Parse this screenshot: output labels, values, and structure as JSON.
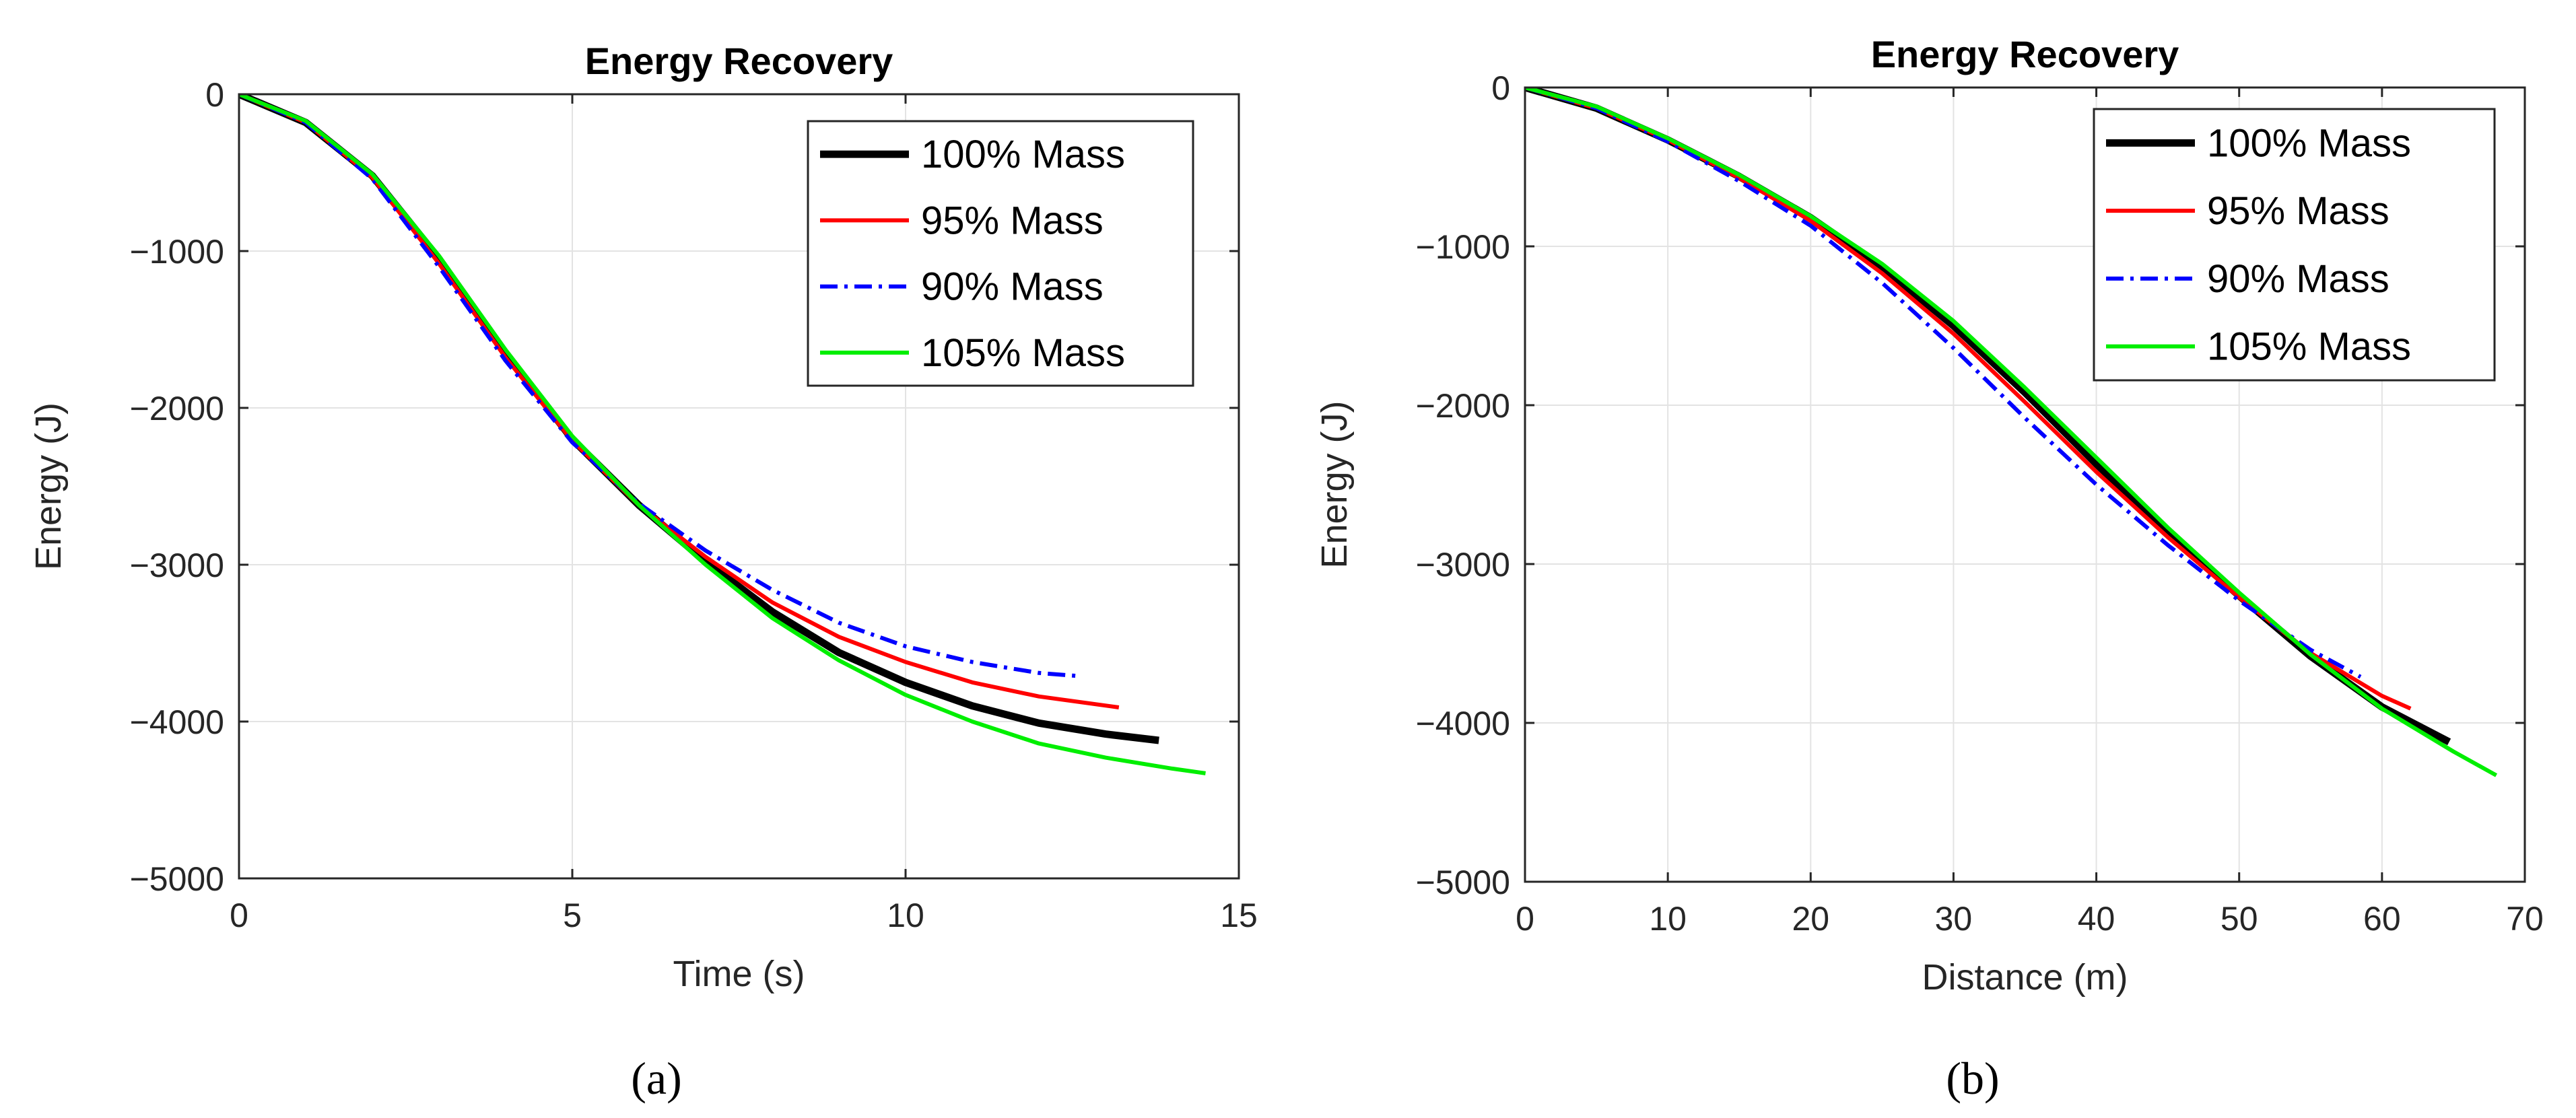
{
  "chart_data": [
    {
      "type": "line",
      "panel_label": "(a)",
      "title": "Energy Recovery",
      "xlabel": "Time (s)",
      "ylabel": "Energy (J)",
      "xlim": [
        0,
        15
      ],
      "ylim": [
        -5000,
        0
      ],
      "xticks": [
        0,
        5,
        10,
        15
      ],
      "yticks": [
        0,
        -1000,
        -2000,
        -3000,
        -4000,
        -5000
      ],
      "xtick_labels": [
        "0",
        "5",
        "10",
        "15"
      ],
      "ytick_labels": [
        "0",
        "−1000",
        "−2000",
        "−3000",
        "−4000",
        "−5000"
      ],
      "grid": true,
      "legend_position": "top-right",
      "series": [
        {
          "name": "100% Mass",
          "color": "#000000",
          "style": "solid-thick",
          "x": [
            0,
            1,
            2,
            3,
            4,
            5,
            6,
            7,
            8,
            9,
            10,
            11,
            12,
            13,
            13.8
          ],
          "y": [
            0,
            -180,
            -520,
            -1050,
            -1650,
            -2200,
            -2620,
            -2980,
            -3300,
            -3560,
            -3750,
            -3900,
            -4010,
            -4080,
            -4120
          ]
        },
        {
          "name": "95% Mass",
          "color": "#ff0000",
          "style": "solid",
          "x": [
            0,
            1,
            2,
            3,
            4,
            5,
            6,
            7,
            8,
            9,
            10,
            11,
            12,
            13.2
          ],
          "y": [
            0,
            -180,
            -530,
            -1080,
            -1680,
            -2210,
            -2620,
            -2950,
            -3240,
            -3460,
            -3620,
            -3750,
            -3840,
            -3910
          ]
        },
        {
          "name": "90% Mass",
          "color": "#0000ff",
          "style": "dash-dot",
          "x": [
            0,
            1,
            2,
            3,
            4,
            5,
            6,
            7,
            8,
            9,
            10,
            11,
            12,
            12.6
          ],
          "y": [
            0,
            -180,
            -540,
            -1100,
            -1700,
            -2220,
            -2610,
            -2910,
            -3160,
            -3370,
            -3520,
            -3620,
            -3690,
            -3710
          ]
        },
        {
          "name": "105% Mass",
          "color": "#00ee00",
          "style": "solid",
          "x": [
            0,
            1,
            2,
            3,
            4,
            5,
            6,
            7,
            8,
            9,
            10,
            11,
            12,
            13,
            14,
            14.5
          ],
          "y": [
            0,
            -170,
            -510,
            -1030,
            -1630,
            -2180,
            -2620,
            -3000,
            -3340,
            -3610,
            -3830,
            -4000,
            -4140,
            -4230,
            -4300,
            -4330
          ]
        }
      ]
    },
    {
      "type": "line",
      "panel_label": "(b)",
      "title": "Energy Recovery",
      "xlabel": "Distance (m)",
      "ylabel": "Energy (J)",
      "xlim": [
        0,
        70
      ],
      "ylim": [
        -5000,
        0
      ],
      "xticks": [
        0,
        10,
        20,
        30,
        40,
        50,
        60,
        70
      ],
      "yticks": [
        0,
        -1000,
        -2000,
        -3000,
        -4000,
        -5000
      ],
      "xtick_labels": [
        "0",
        "10",
        "20",
        "30",
        "40",
        "50",
        "60",
        "70"
      ],
      "ytick_labels": [
        "0",
        "−1000",
        "−2000",
        "−3000",
        "−4000",
        "−5000"
      ],
      "grid": true,
      "legend_position": "top-right",
      "series": [
        {
          "name": "100% Mass",
          "color": "#000000",
          "style": "solid-thick",
          "x": [
            0,
            5,
            10,
            15,
            20,
            25,
            30,
            35,
            40,
            45,
            50,
            55,
            60,
            64.7
          ],
          "y": [
            0,
            -130,
            -330,
            -560,
            -820,
            -1130,
            -1500,
            -1920,
            -2370,
            -2800,
            -3200,
            -3580,
            -3900,
            -4120
          ]
        },
        {
          "name": "95% Mass",
          "color": "#ff0000",
          "style": "solid",
          "x": [
            0,
            5,
            10,
            15,
            20,
            25,
            30,
            35,
            40,
            45,
            50,
            55,
            60,
            62
          ],
          "y": [
            0,
            -130,
            -330,
            -570,
            -840,
            -1170,
            -1550,
            -1980,
            -2420,
            -2830,
            -3210,
            -3560,
            -3830,
            -3910
          ]
        },
        {
          "name": "90% Mass",
          "color": "#0000ff",
          "style": "dash-dot",
          "x": [
            0,
            5,
            10,
            15,
            20,
            25,
            30,
            35,
            40,
            45,
            50,
            55,
            58.5
          ],
          "y": [
            0,
            -130,
            -340,
            -590,
            -870,
            -1230,
            -1640,
            -2080,
            -2500,
            -2880,
            -3230,
            -3540,
            -3710
          ]
        },
        {
          "name": "105% Mass",
          "color": "#00ee00",
          "style": "solid",
          "x": [
            0,
            5,
            10,
            15,
            20,
            25,
            30,
            35,
            40,
            45,
            50,
            55,
            60,
            65,
            68
          ],
          "y": [
            0,
            -120,
            -320,
            -550,
            -810,
            -1110,
            -1470,
            -1890,
            -2330,
            -2770,
            -3180,
            -3570,
            -3910,
            -4180,
            -4330
          ]
        }
      ]
    }
  ]
}
